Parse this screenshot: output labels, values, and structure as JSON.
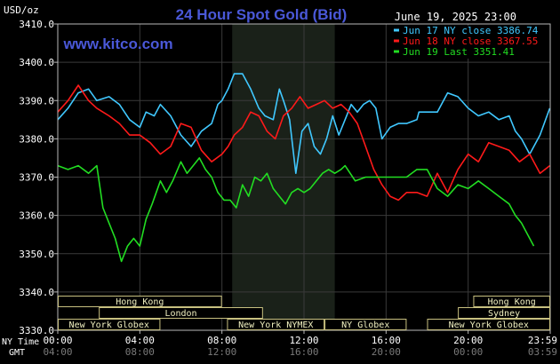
{
  "header": {
    "title": "24 Hour Spot Gold (Bid)",
    "watermark": "www.kitco.com",
    "date": "June 19, 2025 23:00",
    "unit": "USD/oz"
  },
  "legend": [
    {
      "label": "Jun 17 NY close 3386.74",
      "color": "#40c8ff"
    },
    {
      "label": "Jun 18 NY close 3367.55",
      "color": "#ff1a1a"
    },
    {
      "label": "Jun 19 Last 3351.41",
      "color": "#22dd22"
    }
  ],
  "market_rows": [
    {
      "bars": [
        {
          "label": "Hong Kong",
          "x0": 0.0,
          "x1": 8.0
        },
        {
          "label": "Hong Kong",
          "x0": 20.25,
          "x1": 24.0
        }
      ]
    },
    {
      "bars": [
        {
          "label": "London",
          "x0": 2.0,
          "x1": 10.0
        },
        {
          "label": "Sydney",
          "x0": 19.5,
          "x1": 24.0
        }
      ]
    },
    {
      "bars": [
        {
          "label": "New York Globex",
          "x0": 0.0,
          "x1": 5.0
        },
        {
          "label": "New York NYMEX",
          "x0": 8.25,
          "x1": 13.0
        },
        {
          "label": "NY Globex",
          "x0": 13.0,
          "x1": 17.0
        },
        {
          "label": "New York Globex",
          "x0": 18.0,
          "x1": 24.0
        }
      ]
    }
  ],
  "time_axis": {
    "ny_label": "NY Time",
    "gmt_label": "GMT",
    "ny_ticks": [
      "00:00",
      "04:00",
      "08:00",
      "12:00",
      "16:00",
      "20:00",
      "23:59"
    ],
    "gmt_ticks": [
      "04:00",
      "08:00",
      "12:00",
      "16:00",
      "20:00",
      "00:00",
      "03:59"
    ]
  },
  "chart_data": {
    "type": "line",
    "title": "24 Hour Spot Gold (Bid)",
    "xlabel": "",
    "ylabel": "USD/oz",
    "x_unit": "hours (NY time)",
    "xlim": [
      0,
      24
    ],
    "ylim": [
      3330,
      3410
    ],
    "yticks": [
      3330,
      3340,
      3350,
      3360,
      3370,
      3380,
      3390,
      3400,
      3410
    ],
    "ytick_labels": [
      "3330.0",
      "3340.0",
      "3350.0",
      "3360.0",
      "3370.0",
      "3380.0",
      "3390.0",
      "3400.0",
      "3410.0"
    ],
    "grid": true,
    "highlight_band": [
      8.5,
      13.5
    ],
    "legend_position": "top-right",
    "series": [
      {
        "name": "Jun 17 NY close 3386.74",
        "color": "#40c8ff",
        "x": [
          0,
          0.5,
          1,
          1.5,
          1.9,
          2.5,
          3,
          3.5,
          4,
          4.3,
          4.7,
          5,
          5.5,
          6,
          6.5,
          7,
          7.5,
          7.8,
          8,
          8.3,
          8.6,
          9,
          9.4,
          9.8,
          10.1,
          10.5,
          10.8,
          11,
          11.3,
          11.6,
          11.9,
          12.2,
          12.5,
          12.8,
          13.1,
          13.4,
          13.7,
          14,
          14.3,
          14.6,
          14.9,
          15.2,
          15.5,
          15.8,
          16.2,
          16.6,
          17,
          17.5,
          17.6,
          18,
          18.5,
          19,
          19.5,
          20,
          20.5,
          21,
          21.5,
          22,
          22.3,
          22.6,
          23,
          23.5,
          23.98
        ],
        "y": [
          3385,
          3388,
          3392,
          3393,
          3390,
          3391,
          3389,
          3385,
          3383,
          3387,
          3386,
          3389,
          3386,
          3381,
          3378,
          3382,
          3384,
          3389,
          3390,
          3393,
          3397,
          3397,
          3393,
          3388,
          3386,
          3385,
          3393,
          3390,
          3385,
          3371,
          3382,
          3384,
          3378,
          3376,
          3380,
          3386,
          3381,
          3385,
          3389,
          3387,
          3389,
          3390,
          3388,
          3380,
          3383,
          3384,
          3384,
          3385,
          3387,
          3387,
          3387,
          3392,
          3391,
          3388,
          3386,
          3387,
          3385,
          3386,
          3382,
          3380,
          3376,
          3381,
          3388
        ]
      },
      {
        "name": "Jun 18 NY close 3367.55",
        "color": "#ff1a1a",
        "x": [
          0,
          0.5,
          1,
          1.5,
          1.9,
          2.5,
          3,
          3.5,
          4,
          4.5,
          5,
          5.5,
          6,
          6.5,
          7,
          7.5,
          8,
          8.3,
          8.6,
          9,
          9.4,
          9.8,
          10.2,
          10.6,
          11,
          11.4,
          11.8,
          12.2,
          12.6,
          13,
          13.4,
          13.8,
          14.2,
          14.6,
          15,
          15.4,
          15.8,
          16.2,
          16.6,
          17,
          17.5,
          18,
          18.5,
          19,
          19.5,
          20,
          20.5,
          21,
          21.5,
          22,
          22.5,
          23,
          23.5,
          23.98
        ],
        "y": [
          3387,
          3390,
          3394,
          3390,
          3388,
          3386,
          3384,
          3381,
          3381,
          3379,
          3376,
          3378,
          3384,
          3383,
          3377,
          3374,
          3376,
          3378,
          3381,
          3383,
          3387,
          3386,
          3382,
          3380,
          3386,
          3388,
          3391,
          3388,
          3389,
          3390,
          3388,
          3389,
          3387,
          3384,
          3378,
          3372,
          3368,
          3365,
          3364,
          3366,
          3366,
          3365,
          3371,
          3366,
          3372,
          3376,
          3374,
          3379,
          3378,
          3377,
          3374,
          3376,
          3371,
          3373
        ]
      },
      {
        "name": "Jun 19 Last 3351.41",
        "color": "#22dd22",
        "x": [
          0,
          0.5,
          1,
          1.5,
          1.9,
          2.2,
          2.5,
          2.8,
          3.1,
          3.4,
          3.7,
          4,
          4.3,
          4.6,
          5,
          5.3,
          5.6,
          6,
          6.3,
          6.6,
          6.9,
          7.2,
          7.5,
          7.8,
          8.1,
          8.4,
          8.7,
          9,
          9.3,
          9.6,
          9.9,
          10.2,
          10.5,
          10.8,
          11.1,
          11.4,
          11.7,
          12,
          12.3,
          12.6,
          12.9,
          13.2,
          13.5,
          13.8,
          14,
          14.5,
          15,
          15.5,
          16,
          16.5,
          17,
          17.5,
          17.6,
          18,
          18.5,
          19,
          19.5,
          20,
          20.5,
          21,
          21.5,
          22,
          22.3,
          22.6,
          22.9,
          23.2
        ],
        "y": [
          3373,
          3372,
          3373,
          3371,
          3373,
          3362,
          3358,
          3354,
          3348,
          3352,
          3354,
          3352,
          3359,
          3363,
          3369,
          3366,
          3369,
          3374,
          3371,
          3373,
          3375,
          3372,
          3370,
          3366,
          3364,
          3364,
          3362,
          3368,
          3365,
          3370,
          3369,
          3371,
          3367,
          3365,
          3363,
          3366,
          3367,
          3366,
          3367,
          3369,
          3371,
          3372,
          3371,
          3372,
          3373,
          3369,
          3370,
          3370,
          3370,
          3370,
          3370,
          3372,
          3372,
          3372,
          3367,
          3365,
          3368,
          3367,
          3369,
          3367,
          3365,
          3363,
          3360,
          3358,
          3355,
          3352
        ]
      }
    ]
  }
}
